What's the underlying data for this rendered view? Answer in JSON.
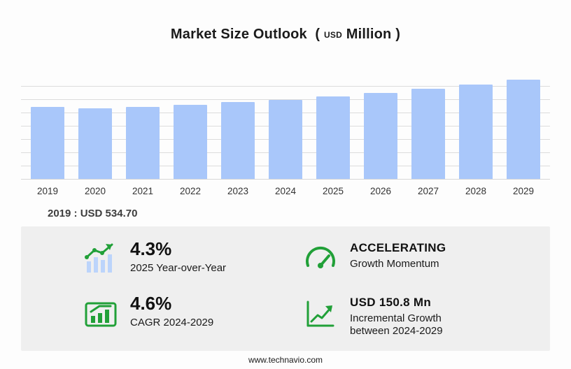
{
  "title": {
    "main": "Market Size Outlook",
    "paren_open": "(",
    "unit_small": "USD",
    "unit": "Million",
    "paren_close": ")"
  },
  "chart_data": {
    "type": "bar",
    "title": "Market Size Outlook (USD Million)",
    "categories": [
      "2019",
      "2020",
      "2021",
      "2022",
      "2023",
      "2024",
      "2025",
      "2026",
      "2027",
      "2028",
      "2029"
    ],
    "values": [
      534.7,
      524.0,
      537.0,
      553.0,
      570.5,
      588.3,
      613.6,
      640.5,
      669.0,
      701.5,
      739.1
    ],
    "xlabel": "",
    "ylabel": "USD Million",
    "ylim": [
      0,
      780
    ],
    "grid": true,
    "legend": false,
    "bar_color": "#a9c7fa"
  },
  "annotation": {
    "base_year_value": "2019 : USD  534.70"
  },
  "stats": [
    {
      "icon": "yoy-bars-icon",
      "value": "4.3%",
      "label": "2025 Year-over-Year"
    },
    {
      "icon": "speedometer-icon",
      "value": "ACCELERATING",
      "label": "Growth Momentum"
    },
    {
      "icon": "cagr-chart-icon",
      "value": "4.6%",
      "label": "CAGR 2024-2029"
    },
    {
      "icon": "incremental-growth-icon",
      "value": "USD 150.8 Mn",
      "label": "Incremental Growth between 2024-2029"
    }
  ],
  "footer": {
    "url": "www.technavio.com"
  },
  "colors": {
    "bar": "#a9c7fa",
    "accent_green": "#21a038",
    "panel_gray": "#efefef",
    "gridline": "#dcdcdc"
  }
}
